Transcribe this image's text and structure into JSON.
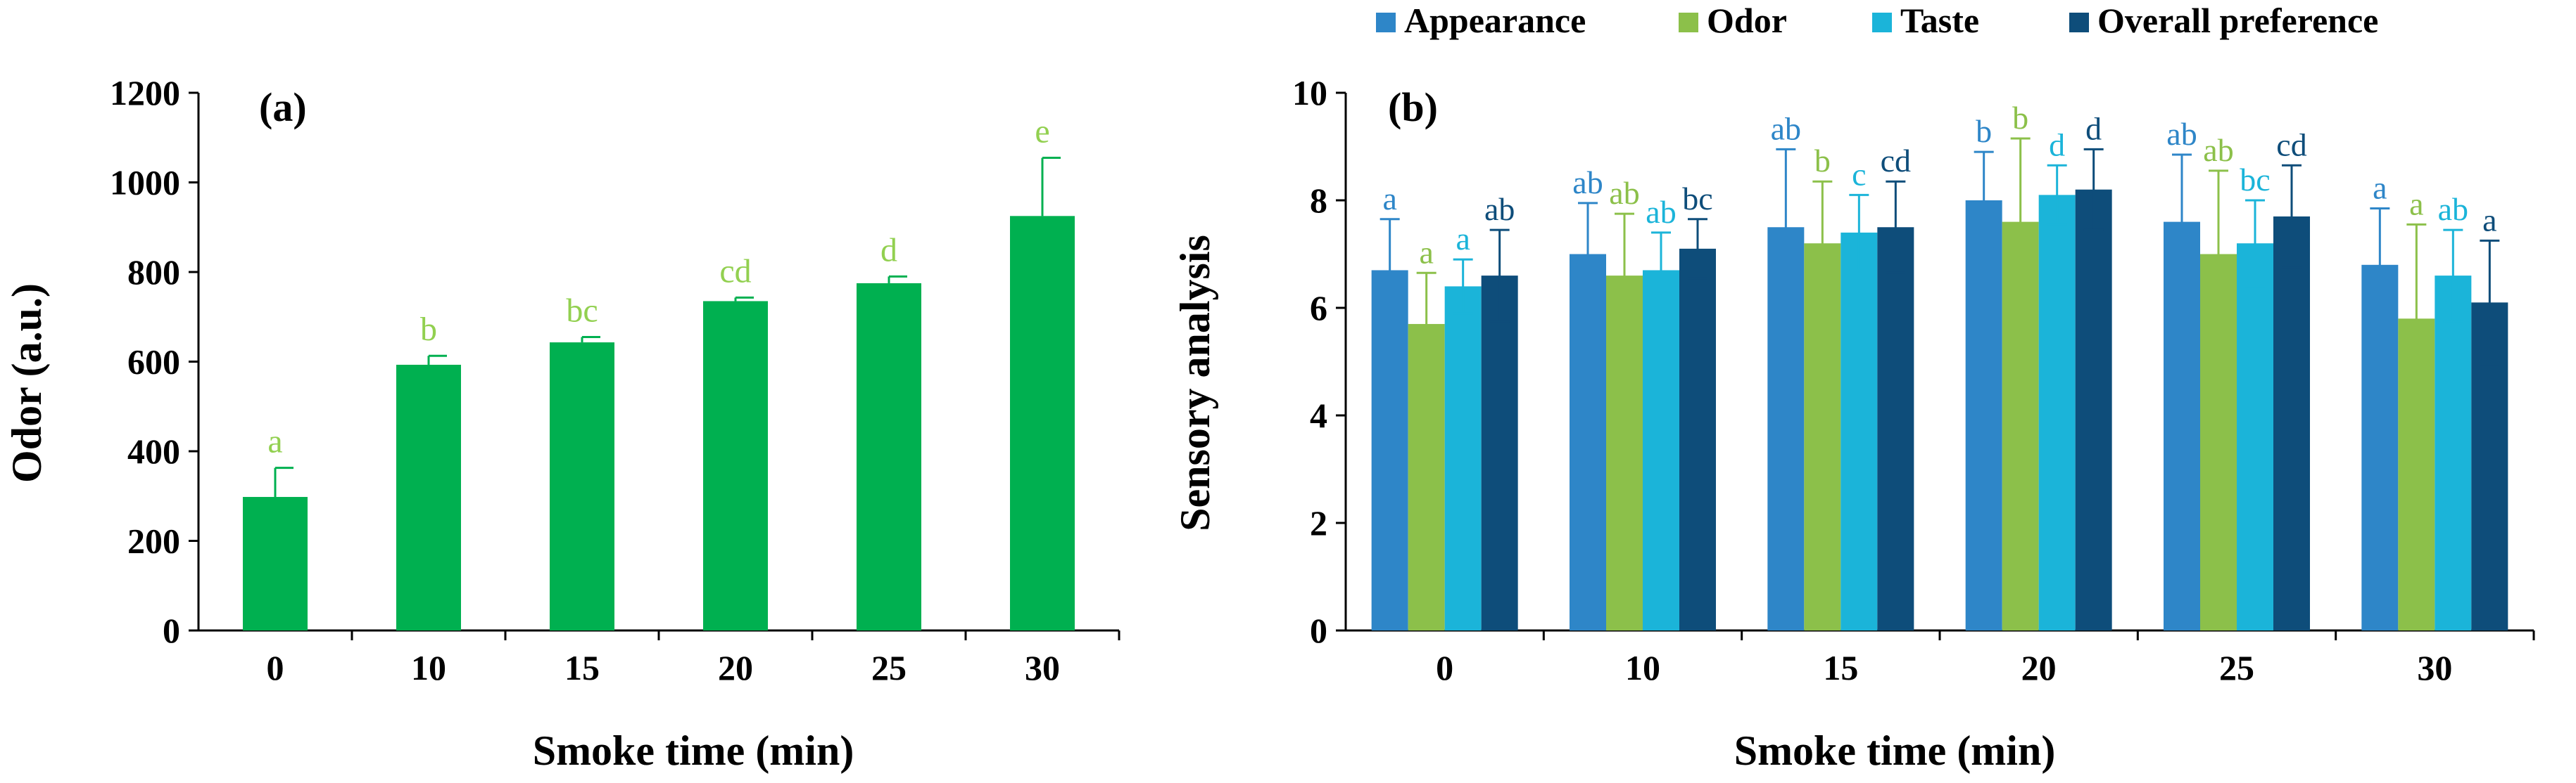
{
  "colors": {
    "odor_bar": "#00B050",
    "odor_label": "#92D050",
    "appearance": "#2E86C8",
    "odor": "#8CC04A",
    "taste": "#1BB4D9",
    "overall": "#0E4D7A",
    "axis": "#000000"
  },
  "chart_data": [
    {
      "panel": "(a)",
      "type": "bar",
      "xlabel": "Smoke time (min)",
      "ylabel": "Odor (a.u.)",
      "ylim": [
        0,
        1200
      ],
      "yticks": [
        0,
        200,
        400,
        600,
        800,
        1000,
        1200
      ],
      "categories": [
        "0",
        "10",
        "15",
        "20",
        "25",
        "30"
      ],
      "values": [
        298,
        593,
        643,
        735,
        775,
        925
      ],
      "errors": [
        65,
        20,
        12,
        8,
        15,
        130
      ],
      "letters": [
        "a",
        "b",
        "bc",
        "cd",
        "d",
        "e"
      ]
    },
    {
      "panel": "(b)",
      "type": "bar",
      "xlabel": "Smoke time (min)",
      "ylabel": "Sensory analysis",
      "ylim": [
        0,
        10
      ],
      "yticks": [
        0,
        2,
        4,
        6,
        8,
        10
      ],
      "categories": [
        "0",
        "10",
        "15",
        "20",
        "25",
        "30"
      ],
      "legend_position": "top",
      "series": [
        {
          "name": "Appearance",
          "values": [
            6.7,
            7.0,
            7.5,
            8.0,
            7.6,
            6.8
          ],
          "errors": [
            0.95,
            0.95,
            1.45,
            0.9,
            1.25,
            1.05
          ],
          "letters": [
            "a",
            "ab",
            "ab",
            "b",
            "ab",
            "a"
          ]
        },
        {
          "name": "Odor",
          "values": [
            5.7,
            6.6,
            7.2,
            7.6,
            7.0,
            5.8
          ],
          "errors": [
            0.95,
            1.15,
            1.15,
            1.55,
            1.55,
            1.75
          ],
          "letters": [
            "a",
            "ab",
            "b",
            "b",
            "ab",
            "a"
          ]
        },
        {
          "name": "Taste",
          "values": [
            6.4,
            6.7,
            7.4,
            8.1,
            7.2,
            6.6
          ],
          "errors": [
            0.5,
            0.7,
            0.7,
            0.55,
            0.8,
            0.85
          ],
          "letters": [
            "a",
            "ab",
            "c",
            "d",
            "bc",
            "ab"
          ]
        },
        {
          "name": "Overall preference",
          "values": [
            6.6,
            7.1,
            7.5,
            8.2,
            7.7,
            6.1
          ],
          "errors": [
            0.85,
            0.55,
            0.85,
            0.75,
            0.95,
            1.15
          ],
          "letters": [
            "ab",
            "bc",
            "cd",
            "d",
            "cd",
            "a"
          ]
        }
      ]
    }
  ]
}
